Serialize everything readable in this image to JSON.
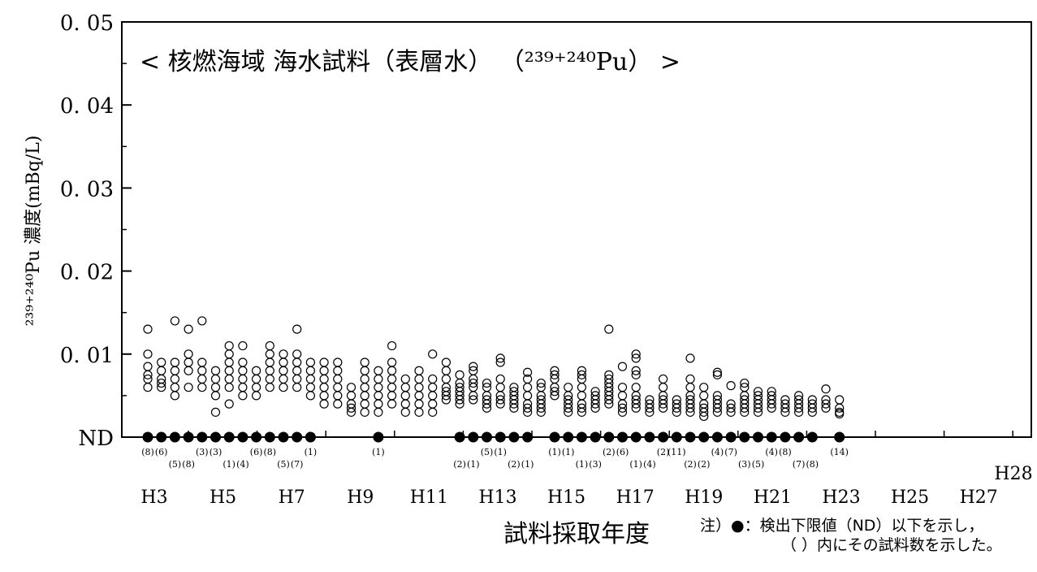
{
  "chart_data": {
    "type": "scatter",
    "title": "< 核燃海域 海水試料（表層水） （²³⁹⁺²⁴⁰Pu） >",
    "xlabel": "試料採取年度",
    "ylabel": "²³⁹⁺²⁴⁰Pu 濃度(mBq/L)",
    "ylim": [
      0,
      0.05
    ],
    "yticks": [
      {
        "value": 0,
        "label": "ND"
      },
      {
        "value": 0.01,
        "label": "0. 01"
      },
      {
        "value": 0.02,
        "label": "0. 02"
      },
      {
        "value": 0.03,
        "label": "0. 03"
      },
      {
        "value": 0.04,
        "label": "0. 04"
      },
      {
        "value": 0.05,
        "label": "0. 05"
      }
    ],
    "xticks": [
      "H3",
      "H5",
      "H7",
      "H9",
      "H11",
      "H13",
      "H15",
      "H17",
      "H19",
      "H21",
      "H23",
      "H25",
      "H27",
      "H28"
    ],
    "grid": false,
    "legend": "none",
    "series": [
      {
        "marker": "open-circle",
        "points": [
          {
            "x": 1,
            "y": [
              0.013,
              0.01,
              0.0085,
              0.0075,
              0.007,
              0.006
            ]
          },
          {
            "x": 2,
            "y": [
              0.009,
              0.008,
              0.007,
              0.0065,
              0.006
            ]
          },
          {
            "x": 3,
            "y": [
              0.014,
              0.009,
              0.008,
              0.007,
              0.006,
              0.005
            ]
          },
          {
            "x": 4,
            "y": [
              0.013,
              0.01,
              0.009,
              0.008,
              0.006
            ]
          },
          {
            "x": 5,
            "y": [
              0.014,
              0.009,
              0.008,
              0.007,
              0.006
            ]
          },
          {
            "x": 6,
            "y": [
              0.008,
              0.007,
              0.006,
              0.005,
              0.003
            ]
          },
          {
            "x": 7,
            "y": [
              0.011,
              0.01,
              0.009,
              0.008,
              0.007,
              0.006,
              0.004
            ]
          },
          {
            "x": 8,
            "y": [
              0.011,
              0.009,
              0.008,
              0.007,
              0.006,
              0.005
            ]
          },
          {
            "x": 9,
            "y": [
              0.008,
              0.007,
              0.006,
              0.005
            ]
          },
          {
            "x": 10,
            "y": [
              0.011,
              0.01,
              0.009,
              0.008,
              0.007,
              0.006
            ]
          },
          {
            "x": 11,
            "y": [
              0.01,
              0.009,
              0.008,
              0.007,
              0.006
            ]
          },
          {
            "x": 12,
            "y": [
              0.013,
              0.01,
              0.009,
              0.008,
              0.007,
              0.006
            ]
          },
          {
            "x": 13,
            "y": [
              0.009,
              0.008,
              0.007,
              0.006,
              0.005
            ]
          },
          {
            "x": 14,
            "y": [
              0.009,
              0.008,
              0.007,
              0.006,
              0.005,
              0.004
            ]
          },
          {
            "x": 15,
            "y": [
              0.009,
              0.008,
              0.007,
              0.006,
              0.005,
              0.004
            ]
          },
          {
            "x": 16,
            "y": [
              0.006,
              0.005,
              0.004,
              0.0035,
              0.003
            ]
          },
          {
            "x": 17,
            "y": [
              0.009,
              0.008,
              0.007,
              0.006,
              0.005,
              0.004,
              0.003
            ]
          },
          {
            "x": 18,
            "y": [
              0.008,
              0.007,
              0.006,
              0.005,
              0.004,
              0.003
            ]
          },
          {
            "x": 19,
            "y": [
              0.011,
              0.009,
              0.008,
              0.007,
              0.006,
              0.005,
              0.004
            ]
          },
          {
            "x": 20,
            "y": [
              0.007,
              0.006,
              0.005,
              0.004,
              0.003
            ]
          },
          {
            "x": 21,
            "y": [
              0.008,
              0.007,
              0.006,
              0.005,
              0.004,
              0.003
            ]
          },
          {
            "x": 22,
            "y": [
              0.01,
              0.007,
              0.006,
              0.005,
              0.004,
              0.003
            ]
          },
          {
            "x": 23,
            "y": [
              0.009,
              0.008,
              0.007,
              0.006,
              0.0055,
              0.005,
              0.0045
            ]
          },
          {
            "x": 24,
            "y": [
              0.0075,
              0.0065,
              0.006,
              0.0055,
              0.005,
              0.0045,
              0.004
            ]
          },
          {
            "x": 25,
            "y": [
              0.0085,
              0.008,
              0.007,
              0.0065,
              0.006,
              0.005,
              0.0045
            ]
          },
          {
            "x": 26,
            "y": [
              0.0065,
              0.006,
              0.005,
              0.0045,
              0.004,
              0.0035
            ]
          },
          {
            "x": 27,
            "y": [
              0.0095,
              0.009,
              0.007,
              0.006,
              0.005,
              0.0045,
              0.004
            ]
          },
          {
            "x": 28,
            "y": [
              0.006,
              0.0055,
              0.005,
              0.0045,
              0.004,
              0.0035
            ]
          },
          {
            "x": 29,
            "y": [
              0.0078,
              0.007,
              0.006,
              0.005,
              0.004,
              0.0035,
              0.003
            ]
          },
          {
            "x": 30,
            "y": [
              0.0065,
              0.006,
              0.005,
              0.0045,
              0.004,
              0.0035,
              0.003
            ]
          },
          {
            "x": 31,
            "y": [
              0.008,
              0.0075,
              0.007,
              0.006,
              0.0055,
              0.005
            ]
          },
          {
            "x": 32,
            "y": [
              0.006,
              0.005,
              0.0045,
              0.004,
              0.0035,
              0.003
            ]
          },
          {
            "x": 33,
            "y": [
              0.008,
              0.0075,
              0.007,
              0.006,
              0.005,
              0.004,
              0.0035,
              0.003
            ]
          },
          {
            "x": 34,
            "y": [
              0.0055,
              0.005,
              0.0045,
              0.004,
              0.0035
            ]
          },
          {
            "x": 35,
            "y": [
              0.013,
              0.0075,
              0.007,
              0.0065,
              0.006,
              0.0055,
              0.005,
              0.0045,
              0.004
            ]
          },
          {
            "x": 36,
            "y": [
              0.0085,
              0.006,
              0.005,
              0.004,
              0.0035,
              0.003
            ]
          },
          {
            "x": 37,
            "y": [
              0.01,
              0.0095,
              0.008,
              0.0075,
              0.006,
              0.005,
              0.0045,
              0.004,
              0.0035
            ]
          },
          {
            "x": 38,
            "y": [
              0.0045,
              0.004,
              0.0035,
              0.003
            ]
          },
          {
            "x": 39,
            "y": [
              0.007,
              0.006,
              0.005,
              0.0045,
              0.004,
              0.0035
            ]
          },
          {
            "x": 40,
            "y": [
              0.0045,
              0.004,
              0.0035,
              0.003
            ]
          },
          {
            "x": 41,
            "y": [
              0.0095,
              0.007,
              0.006,
              0.005,
              0.0045,
              0.004,
              0.0035,
              0.003
            ]
          },
          {
            "x": 42,
            "y": [
              0.006,
              0.005,
              0.004,
              0.0035,
              0.003,
              0.0025
            ]
          },
          {
            "x": 43,
            "y": [
              0.0078,
              0.0075,
              0.005,
              0.0045,
              0.004,
              0.0035,
              0.003
            ]
          },
          {
            "x": 44,
            "y": [
              0.0062,
              0.004,
              0.0035,
              0.003
            ]
          },
          {
            "x": 45,
            "y": [
              0.0065,
              0.006,
              0.005,
              0.0045,
              0.004,
              0.0035,
              0.003
            ]
          },
          {
            "x": 46,
            "y": [
              0.0055,
              0.005,
              0.0045,
              0.004,
              0.0035,
              0.003
            ]
          },
          {
            "x": 47,
            "y": [
              0.0055,
              0.005,
              0.0045,
              0.004,
              0.0035
            ]
          },
          {
            "x": 48,
            "y": [
              0.0045,
              0.004,
              0.0035,
              0.003
            ]
          },
          {
            "x": 49,
            "y": [
              0.005,
              0.0045,
              0.004,
              0.0035,
              0.003
            ]
          },
          {
            "x": 50,
            "y": [
              0.0045,
              0.004,
              0.0035,
              0.003
            ]
          },
          {
            "x": 51,
            "y": [
              0.0058,
              0.0045,
              0.004,
              0.0035
            ]
          },
          {
            "x": 52,
            "y": [
              0.0045,
              0.0035,
              0.003,
              0.0028
            ]
          }
        ]
      },
      {
        "marker": "filled-circle-ND",
        "points": [
          {
            "x": 1,
            "count": "(8)"
          },
          {
            "x": 2,
            "count": "(6)"
          },
          {
            "x": 3,
            "count": "(5)"
          },
          {
            "x": 4,
            "count": "(8)"
          },
          {
            "x": 5,
            "count": "(3)"
          },
          {
            "x": 6,
            "count": "(3)"
          },
          {
            "x": 7,
            "count": "(1)"
          },
          {
            "x": 8,
            "count": "(4)"
          },
          {
            "x": 9,
            "count": "(6)"
          },
          {
            "x": 10,
            "count": "(8)"
          },
          {
            "x": 11,
            "count": "(5)"
          },
          {
            "x": 12,
            "count": "(7)"
          },
          {
            "x": 13,
            "count": "(1)"
          },
          {
            "x": 18,
            "count": "(1)"
          },
          {
            "x": 24,
            "count": "(2)"
          },
          {
            "x": 25,
            "count": "(1)"
          },
          {
            "x": 26,
            "count": "(5)"
          },
          {
            "x": 27,
            "count": "(1)"
          },
          {
            "x": 28,
            "count": "(2)"
          },
          {
            "x": 29,
            "count": "(1)"
          },
          {
            "x": 31,
            "count": "(1)"
          },
          {
            "x": 32,
            "count": "(1)"
          },
          {
            "x": 33,
            "count": "(1)"
          },
          {
            "x": 34,
            "count": "(3)"
          },
          {
            "x": 35,
            "count": "(2)"
          },
          {
            "x": 36,
            "count": "(6)"
          },
          {
            "x": 37,
            "count": "(1)"
          },
          {
            "x": 38,
            "count": "(4)"
          },
          {
            "x": 39,
            "count": "(2)"
          },
          {
            "x": 40,
            "count": "(11)"
          },
          {
            "x": 41,
            "count": "(2)"
          },
          {
            "x": 42,
            "count": "(2)"
          },
          {
            "x": 43,
            "count": "(4)"
          },
          {
            "x": 44,
            "count": "(7)"
          },
          {
            "x": 45,
            "count": "(3)"
          },
          {
            "x": 46,
            "count": "(5)"
          },
          {
            "x": 47,
            "count": "(4)"
          },
          {
            "x": 48,
            "count": "(8)"
          },
          {
            "x": 49,
            "count": "(7)"
          },
          {
            "x": 50,
            "count": "(8)"
          },
          {
            "x": 52,
            "count": "(14)"
          }
        ]
      }
    ]
  },
  "note": {
    "line1": "注）●：検出下限値（ND）以下を示し，",
    "line2": "（ ）内にその試料数を示した。"
  }
}
